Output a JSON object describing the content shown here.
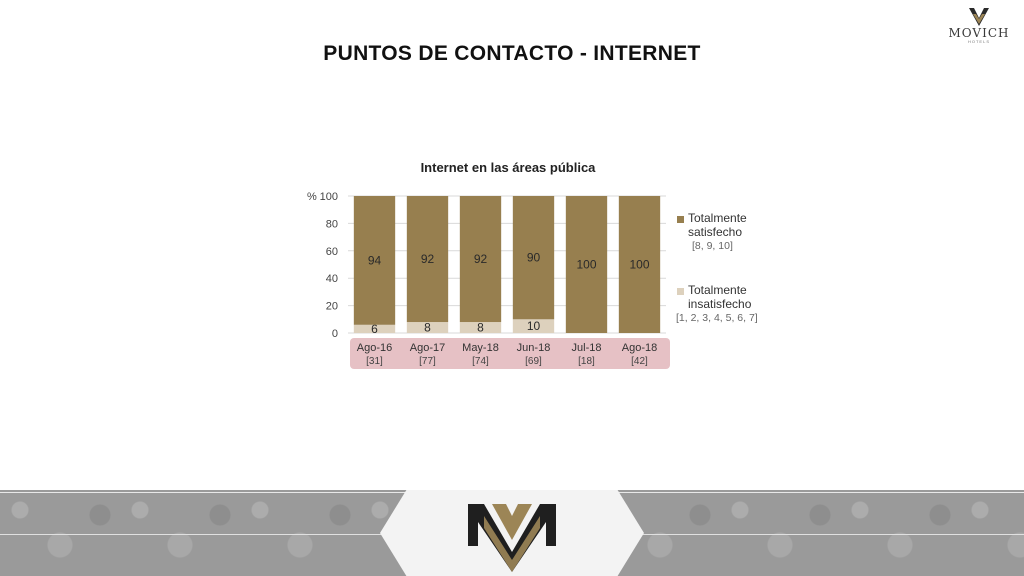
{
  "header": {
    "brand": "MOVICH",
    "brand_sub": "HOTELS",
    "page_title": "PUNTOS DE CONTACTO - INTERNET"
  },
  "colors": {
    "satisfied": "#977f4f",
    "unsatisfied": "#ddd1bd",
    "category_band": "#e6c1c5",
    "footer_gray": "#9a9a9a",
    "logo_gold": "#9c8556",
    "logo_dark": "#1f1f1f"
  },
  "chart_data": {
    "type": "bar",
    "stacked": true,
    "title": "Internet en las áreas pública",
    "ylabel": "%",
    "ylim": [
      0,
      100
    ],
    "yticks": [
      0,
      20,
      40,
      60,
      80,
      100
    ],
    "grid": true,
    "legend_position": "right",
    "categories": [
      "Ago-16",
      "Ago-17",
      "May-18",
      "Jun-18",
      "Jul-18",
      "Ago-18"
    ],
    "category_counts": [
      "[31]",
      "[77]",
      "[74]",
      "[69]",
      "[18]",
      "[42]"
    ],
    "series": [
      {
        "name": "Totalmente satisfecho",
        "scale": "[8, 9, 10]",
        "values": [
          94,
          92,
          92,
          90,
          100,
          100
        ],
        "labels": [
          "94",
          "92",
          "92",
          "90",
          "100",
          "100"
        ]
      },
      {
        "name": "Totalmente insatisfecho",
        "scale": "[1, 2, 3, 4, 5, 6, 7]",
        "values": [
          6,
          8,
          8,
          10,
          0,
          0
        ],
        "labels": [
          "6",
          "8",
          "8",
          "10",
          "",
          ""
        ]
      }
    ]
  }
}
